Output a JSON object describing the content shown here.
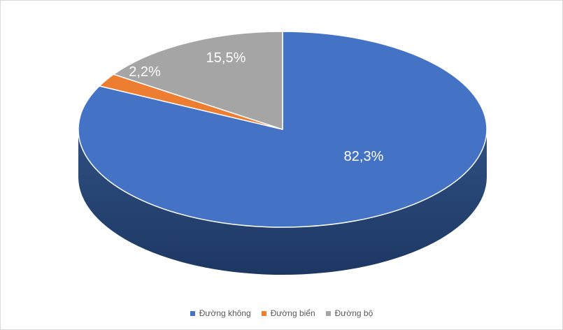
{
  "chart_data": {
    "type": "pie",
    "style_3d": true,
    "title": "",
    "categories": [
      "Đường không",
      "Đường biển",
      "Đường bộ"
    ],
    "values": [
      82.3,
      2.2,
      15.5
    ],
    "data_labels": [
      "82,3%",
      "2,2%",
      "15,5%"
    ],
    "colors": [
      "#4472C4",
      "#ED7D31",
      "#A5A5A5"
    ],
    "side_gradient_top": "#2F5082",
    "side_gradient_bottom": "#1D3763",
    "slice_border_color": "#FFFFFF",
    "start_angle_deg": 0,
    "direction": "clockwise",
    "legend_position": "bottom",
    "data_label_color": "#FFFFFF",
    "legend_text_color": "#595959",
    "background": "#FFFFFF",
    "frame_border_color": "#D9D9D9"
  }
}
